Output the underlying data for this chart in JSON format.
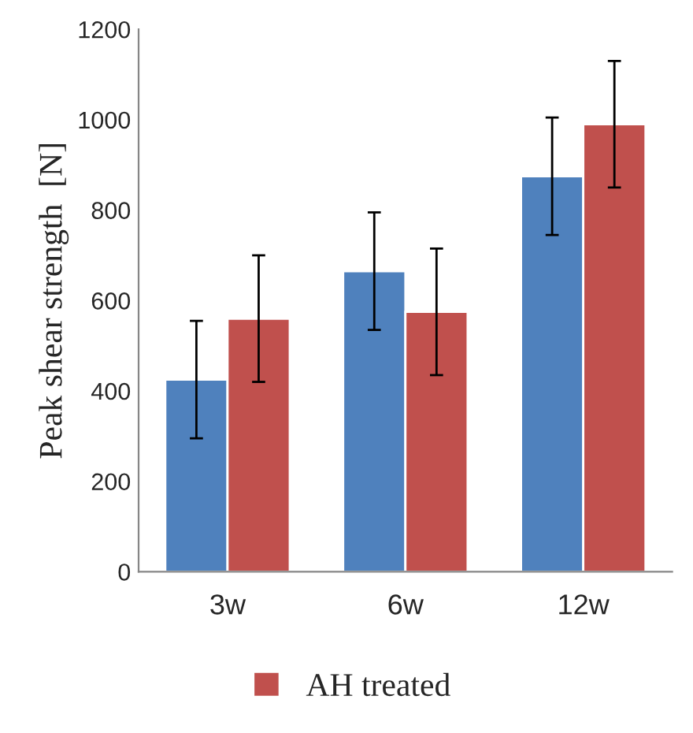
{
  "chart_data": {
    "type": "bar",
    "ylabel": "Peak shear strength  [N]",
    "categories": [
      "3w",
      "6w",
      "12w"
    ],
    "series": [
      {
        "color": "#4f81bd",
        "values": [
          425,
          665,
          875
        ],
        "errors": [
          130,
          130,
          130
        ]
      },
      {
        "name": "AH treated",
        "color": "#c0504d",
        "values": [
          560,
          575,
          990
        ],
        "errors": [
          140,
          140,
          140
        ]
      }
    ],
    "ylim": [
      0,
      1200
    ],
    "yticks": [
      0,
      200,
      400,
      600,
      800,
      1000,
      1200
    ],
    "grid": false,
    "legend": "bottom"
  }
}
